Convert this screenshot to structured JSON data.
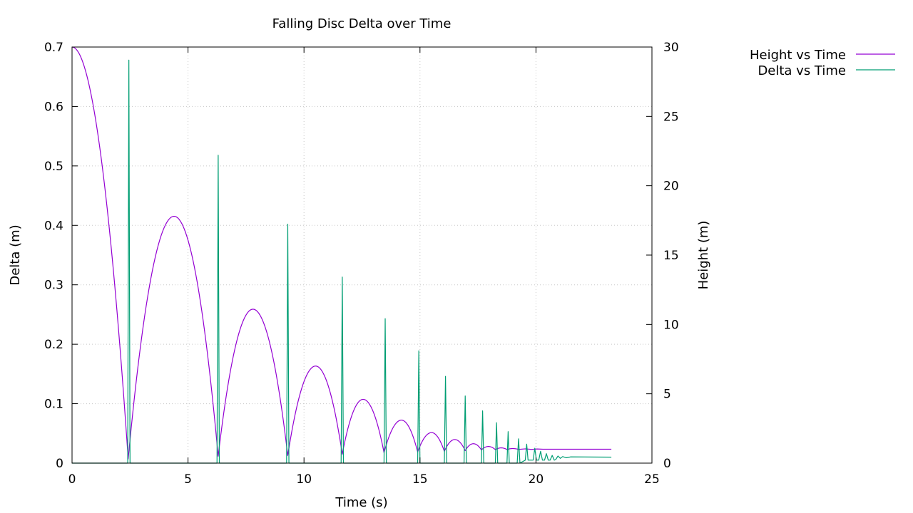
{
  "chart_data": {
    "type": "line",
    "title": "Falling Disc Delta over Time",
    "xlabel": "Time (s)",
    "ylabel": "Delta (m)",
    "y2label": "Height (m)",
    "xlim": [
      0,
      25
    ],
    "ylim": [
      0,
      0.7
    ],
    "y2lim": [
      0,
      30
    ],
    "x_ticks": [
      "0",
      "5",
      "10",
      "15",
      "20",
      "25"
    ],
    "y_ticks": [
      "0",
      "0.1",
      "0.2",
      "0.3",
      "0.4",
      "0.5",
      "0.6",
      "0.7"
    ],
    "y2_ticks": [
      "0",
      "5",
      "10",
      "15",
      "20",
      "25",
      "30"
    ],
    "grid": true,
    "legend_position": "top-right-outside",
    "series": [
      {
        "name": "Height vs Time",
        "axis": "y2",
        "color": "#9400d3",
        "description_points": {
          "t_start": 0,
          "h_start": 30,
          "bounces": [
            {
              "t": 2.42,
              "h": 0.3
            },
            {
              "t": 6.3,
              "h": 0.5,
              "peak_t": 4.4,
              "peak_h": 17.8
            },
            {
              "t": 9.3,
              "h": 0.55,
              "peak_t": 7.8,
              "peak_h": 11.1
            },
            {
              "t": 11.65,
              "h": 0.65,
              "peak_t": 10.5,
              "peak_h": 7.0
            },
            {
              "t": 13.45,
              "h": 0.75,
              "peak_t": 12.55,
              "peak_h": 4.6
            },
            {
              "t": 14.9,
              "h": 0.8,
              "peak_t": 14.2,
              "peak_h": 3.1
            },
            {
              "t": 16.05,
              "h": 0.85,
              "peak_t": 15.5,
              "peak_h": 2.2
            },
            {
              "t": 16.95,
              "h": 0.9,
              "peak_t": 16.5,
              "peak_h": 1.7
            },
            {
              "t": 17.65,
              "h": 0.95,
              "peak_t": 17.3,
              "peak_h": 1.4
            },
            {
              "t": 18.25,
              "h": 0.97,
              "peak_t": 17.95,
              "peak_h": 1.2
            },
            {
              "t": 18.75,
              "h": 0.98,
              "peak_t": 18.5,
              "peak_h": 1.1
            },
            {
              "t": 19.25,
              "h": 0.99,
              "peak_t": 19.0,
              "peak_h": 1.05
            }
          ],
          "settle_h": 1.0,
          "t_end": 23.25
        }
      },
      {
        "name": "Delta vs Time",
        "axis": "y",
        "color": "#009e73",
        "spikes": [
          {
            "t": 2.45,
            "v": 0.678
          },
          {
            "t": 6.3,
            "v": 0.518
          },
          {
            "t": 9.3,
            "v": 0.402
          },
          {
            "t": 11.65,
            "v": 0.313
          },
          {
            "t": 13.5,
            "v": 0.243
          },
          {
            "t": 14.95,
            "v": 0.189
          },
          {
            "t": 16.1,
            "v": 0.146
          },
          {
            "t": 16.95,
            "v": 0.113
          },
          {
            "t": 17.7,
            "v": 0.088
          },
          {
            "t": 18.3,
            "v": 0.068
          },
          {
            "t": 18.8,
            "v": 0.053
          },
          {
            "t": 19.25,
            "v": 0.041
          },
          {
            "t": 19.6,
            "v": 0.032
          },
          {
            "t": 19.95,
            "v": 0.025
          },
          {
            "t": 20.2,
            "v": 0.02
          },
          {
            "t": 20.45,
            "v": 0.016
          },
          {
            "t": 20.7,
            "v": 0.013
          }
        ],
        "settle_v": 0.01,
        "t_end": 23.25
      }
    ]
  }
}
